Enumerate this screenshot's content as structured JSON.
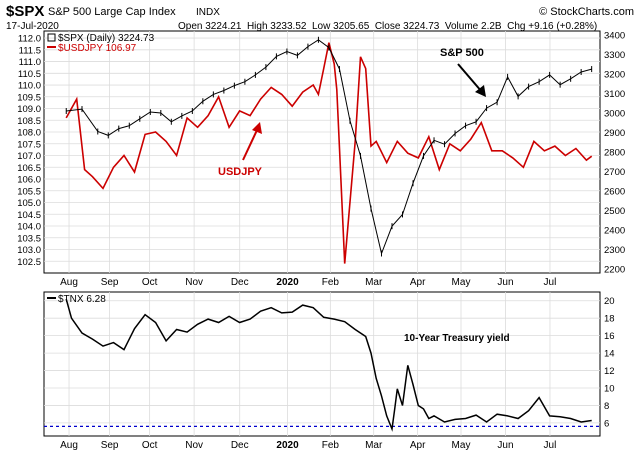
{
  "header": {
    "symbol": "$SPX",
    "name": "S&P 500 Large Cap Index",
    "exchange": "INDX",
    "date": "17-Jul-2020",
    "quote": "Open 3224.21  High 3233.52  Low 3205.65  Close 3224.73  Volume 2.2B  Chg +9.16 (+0.28%)",
    "brand": "© StockCharts.com"
  },
  "chart_data": [
    {
      "type": "line",
      "x_ticks": [
        "Aug",
        "Sep",
        "Oct",
        "Nov",
        "Dec",
        "2020",
        "Feb",
        "Mar",
        "Apr",
        "May",
        "Jun",
        "Jul"
      ],
      "legend": [
        {
          "label": "$SPX (Daily) 3224.73",
          "color": "#000000"
        },
        {
          "label": "$USDJPY 106.97",
          "color": "#cc0000"
        }
      ],
      "y_left": {
        "ylim": [
          102.0,
          112.3
        ],
        "ticks": [
          "102.5",
          "103.0",
          "103.5",
          "104.0",
          "104.5",
          "105.0",
          "105.5",
          "106.0",
          "106.5",
          "107.0",
          "107.5",
          "108.0",
          "108.5",
          "109.0",
          "109.5",
          "110.0",
          "110.5",
          "111.0",
          "111.5",
          "112.0"
        ]
      },
      "y_right": {
        "ylim": [
          2180,
          3420
        ],
        "ticks": [
          "2200",
          "2300",
          "2400",
          "2500",
          "2600",
          "2700",
          "2800",
          "2900",
          "3000",
          "3100",
          "3200",
          "3300",
          "3400"
        ]
      },
      "series": [
        {
          "name": "$SPX",
          "color": "#000000",
          "x": [
            0,
            0.03,
            0.06,
            0.08,
            0.1,
            0.12,
            0.14,
            0.16,
            0.18,
            0.2,
            0.22,
            0.24,
            0.26,
            0.28,
            0.3,
            0.32,
            0.34,
            0.36,
            0.38,
            0.4,
            0.42,
            0.44,
            0.46,
            0.48,
            0.5,
            0.52,
            0.54,
            0.56,
            0.58,
            0.6,
            0.62,
            0.64,
            0.66,
            0.68,
            0.7,
            0.72,
            0.74,
            0.76,
            0.78,
            0.8,
            0.82,
            0.84,
            0.86,
            0.88,
            0.9,
            0.92,
            0.94,
            0.96,
            0.98,
            1.0
          ],
          "values": [
            3010,
            3020,
            2905,
            2885,
            2920,
            2935,
            2970,
            3005,
            3000,
            2955,
            2985,
            3010,
            3060,
            3095,
            3115,
            3140,
            3160,
            3195,
            3235,
            3290,
            3315,
            3295,
            3340,
            3375,
            3335,
            3225,
            2960,
            2780,
            2510,
            2280,
            2420,
            2480,
            2640,
            2780,
            2860,
            2840,
            2895,
            2935,
            2955,
            3025,
            3055,
            3185,
            3085,
            3135,
            3160,
            3195,
            3145,
            3175,
            3210,
            3225
          ]
        },
        {
          "name": "$USDJPY",
          "color": "#cc0000",
          "x": [
            0,
            0.02,
            0.035,
            0.05,
            0.07,
            0.09,
            0.11,
            0.13,
            0.15,
            0.17,
            0.19,
            0.21,
            0.23,
            0.25,
            0.27,
            0.29,
            0.31,
            0.33,
            0.35,
            0.37,
            0.39,
            0.41,
            0.43,
            0.45,
            0.47,
            0.48,
            0.49,
            0.5,
            0.51,
            0.515,
            0.52,
            0.53,
            0.55,
            0.56,
            0.57,
            0.58,
            0.59,
            0.61,
            0.63,
            0.65,
            0.67,
            0.69,
            0.71,
            0.73,
            0.75,
            0.77,
            0.79,
            0.81,
            0.83,
            0.85,
            0.87,
            0.89,
            0.91,
            0.93,
            0.95,
            0.97,
            0.99,
            1.0
          ],
          "values": [
            108.6,
            109.4,
            106.4,
            106.1,
            105.6,
            106.5,
            107.0,
            106.3,
            107.9,
            108.0,
            107.6,
            107.0,
            108.6,
            108.2,
            108.7,
            109.5,
            108.2,
            108.9,
            108.7,
            109.4,
            109.9,
            109.6,
            109.1,
            109.7,
            110.0,
            109.6,
            110.7,
            111.8,
            110.9,
            109.8,
            107.3,
            102.4,
            107.6,
            111.2,
            110.7,
            107.4,
            107.6,
            106.7,
            107.6,
            107.1,
            106.9,
            107.8,
            106.4,
            107.5,
            107.2,
            107.7,
            108.4,
            107.2,
            107.2,
            106.9,
            106.5,
            107.6,
            107.2,
            107.4,
            107.0,
            107.3,
            106.8,
            106.97
          ]
        }
      ],
      "annotations": [
        {
          "text": "S&P 500",
          "color": "#000000"
        },
        {
          "text": "USDJPY",
          "color": "#cc0000"
        }
      ]
    },
    {
      "type": "line",
      "x_ticks": [
        "Aug",
        "Sep",
        "Oct",
        "Nov",
        "Dec",
        "2020",
        "Feb",
        "Mar",
        "Apr",
        "May",
        "Jun",
        "Jul"
      ],
      "legend": [
        {
          "label": "$TNX 6.28",
          "color": "#000000"
        }
      ],
      "y_right": {
        "ylim": [
          4.5,
          21.0
        ],
        "ticks": [
          "6",
          "8",
          "10",
          "12",
          "14",
          "16",
          "18",
          "20"
        ]
      },
      "reference_line": {
        "value": 5.6,
        "color": "#0000cc",
        "style": "dashed"
      },
      "series": [
        {
          "name": "$TNX",
          "color": "#000000",
          "x": [
            0,
            0.01,
            0.03,
            0.05,
            0.07,
            0.09,
            0.11,
            0.13,
            0.15,
            0.17,
            0.19,
            0.21,
            0.23,
            0.25,
            0.27,
            0.29,
            0.31,
            0.33,
            0.35,
            0.37,
            0.39,
            0.41,
            0.43,
            0.45,
            0.47,
            0.49,
            0.51,
            0.53,
            0.55,
            0.57,
            0.58,
            0.59,
            0.6,
            0.61,
            0.62,
            0.625,
            0.63,
            0.64,
            0.65,
            0.66,
            0.67,
            0.68,
            0.69,
            0.7,
            0.72,
            0.74,
            0.76,
            0.78,
            0.8,
            0.82,
            0.84,
            0.86,
            0.88,
            0.9,
            0.92,
            0.94,
            0.96,
            0.98,
            1.0
          ],
          "values": [
            20.2,
            18.0,
            16.3,
            15.6,
            14.8,
            15.2,
            14.4,
            16.8,
            18.4,
            17.5,
            15.4,
            16.7,
            16.4,
            17.3,
            17.9,
            17.5,
            18.2,
            17.5,
            17.9,
            18.8,
            19.2,
            18.6,
            18.7,
            19.5,
            19.2,
            18.1,
            17.9,
            17.6,
            16.7,
            15.9,
            14.0,
            11.1,
            9.1,
            6.8,
            5.3,
            7.5,
            9.9,
            8.0,
            12.6,
            10.4,
            8.0,
            7.6,
            6.5,
            6.8,
            6.1,
            6.4,
            6.5,
            6.9,
            6.1,
            7.0,
            6.8,
            6.5,
            7.4,
            8.9,
            6.8,
            6.7,
            6.5,
            6.1,
            6.28
          ]
        }
      ],
      "annotations": [
        {
          "text": "10-Year Treasury yield",
          "color": "#000000"
        }
      ]
    }
  ]
}
